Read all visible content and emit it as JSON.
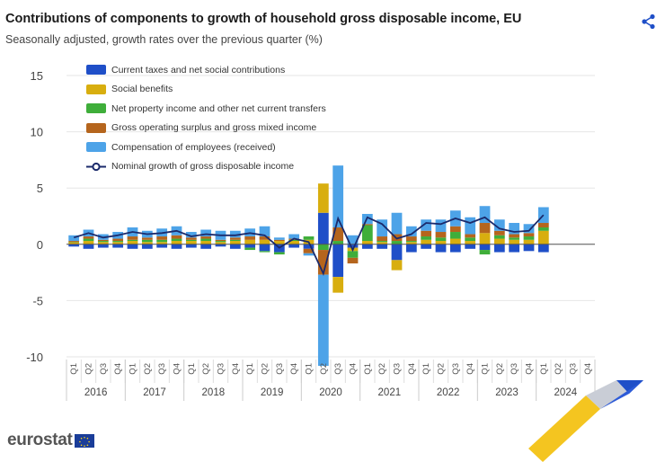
{
  "header": {
    "title": "Contributions of components to growth of household gross disposable income, EU",
    "subtitle": "Seasonally adjusted, growth rates over the previous quarter (%)"
  },
  "brand": {
    "logo_text": "eurostat"
  },
  "icons": {
    "share": "share-icon"
  },
  "colors": {
    "taxes": "#1f4fc8",
    "social": "#d8ae0f",
    "property": "#3fae3a",
    "gos": "#b5651d",
    "comp": "#4da3e8",
    "line": "#1b2a6b"
  },
  "chart_data": {
    "type": "bar",
    "stacked": true,
    "title": "Contributions of components to growth of household gross disposable income, EU",
    "subtitle": "Seasonally adjusted, growth rates over the previous quarter (%)",
    "ylim": [
      -10,
      15
    ],
    "yticks": [
      "15",
      "10",
      "5",
      "0",
      "-5",
      "-10"
    ],
    "years": [
      "2016",
      "2017",
      "2018",
      "2019",
      "2020",
      "2021",
      "2022",
      "2023",
      "2024"
    ],
    "quarter_labels": [
      "Q1",
      "Q2",
      "Q3",
      "Q4"
    ],
    "series": [
      {
        "name": "Current taxes and net social contributions",
        "key": "taxes",
        "values": [
          -0.2,
          -0.4,
          -0.3,
          -0.3,
          -0.4,
          -0.4,
          -0.3,
          -0.4,
          -0.3,
          -0.4,
          -0.2,
          -0.4,
          -0.3,
          -0.6,
          -0.7,
          -0.3,
          -0.4,
          2.8,
          -2.9,
          -0.3,
          -0.4,
          -0.4,
          -1.4,
          -0.7,
          -0.4,
          -0.7,
          -0.7,
          -0.4,
          -0.5,
          -0.7,
          -0.7,
          -0.6,
          -0.7,
          null,
          null,
          null
        ]
      },
      {
        "name": "Social benefits",
        "key": "social",
        "values": [
          0.2,
          0.3,
          0.2,
          0.2,
          0.3,
          0.2,
          0.2,
          0.3,
          0.3,
          0.3,
          0.2,
          0.3,
          0.4,
          0.4,
          0.3,
          0.3,
          0.4,
          2.6,
          -1.4,
          -0.3,
          0.3,
          0.2,
          -0.9,
          0.2,
          0.4,
          0.3,
          0.5,
          0.3,
          1.0,
          0.5,
          0.4,
          0.4,
          1.2,
          null,
          null,
          null
        ]
      },
      {
        "name": "Net property income and other net current transfers",
        "key": "property",
        "values": [
          0.0,
          0.2,
          0.1,
          0.1,
          0.1,
          0.2,
          0.2,
          0.2,
          0.1,
          0.2,
          0.1,
          0.1,
          -0.2,
          -0.1,
          -0.2,
          0.1,
          0.3,
          -0.5,
          0.3,
          -0.6,
          1.4,
          0.1,
          0.3,
          0.1,
          0.3,
          0.3,
          0.6,
          0.3,
          -0.4,
          0.3,
          0.2,
          0.3,
          0.3,
          null,
          null,
          null
        ]
      },
      {
        "name": "Gross operating surplus and gross mixed income",
        "key": "gos",
        "values": [
          0.1,
          0.2,
          0.1,
          0.2,
          0.3,
          0.2,
          0.3,
          0.3,
          0.2,
          0.2,
          0.1,
          0.2,
          0.3,
          0.3,
          0.1,
          0.1,
          -0.4,
          -2.2,
          1.2,
          -0.5,
          0.1,
          0.4,
          0.6,
          0.4,
          0.5,
          0.5,
          0.5,
          0.3,
          0.9,
          0.4,
          0.3,
          0.3,
          0.4,
          null,
          null,
          null
        ]
      },
      {
        "name": "Compensation of employees (received)",
        "key": "comp",
        "values": [
          0.5,
          0.6,
          0.5,
          0.6,
          0.8,
          0.6,
          0.7,
          0.8,
          0.5,
          0.6,
          0.8,
          0.6,
          0.7,
          0.9,
          0.2,
          0.4,
          -0.2,
          -8.1,
          5.5,
          0.8,
          0.9,
          1.5,
          1.9,
          0.9,
          1.0,
          1.1,
          1.4,
          1.5,
          1.5,
          1.0,
          1.0,
          0.8,
          1.4,
          null,
          null,
          null
        ]
      },
      {
        "name": "Nominal growth of gross disposable income",
        "key": "line",
        "type": "line",
        "values": [
          0.6,
          1.0,
          0.6,
          0.8,
          1.1,
          0.9,
          1.0,
          1.2,
          0.7,
          0.9,
          0.8,
          0.8,
          1.0,
          0.8,
          -0.3,
          0.5,
          0.2,
          -2.6,
          2.3,
          -0.5,
          2.4,
          1.8,
          0.5,
          0.9,
          1.9,
          1.8,
          2.3,
          1.9,
          2.4,
          1.4,
          1.1,
          1.2,
          2.6,
          null,
          null,
          null
        ]
      }
    ]
  }
}
